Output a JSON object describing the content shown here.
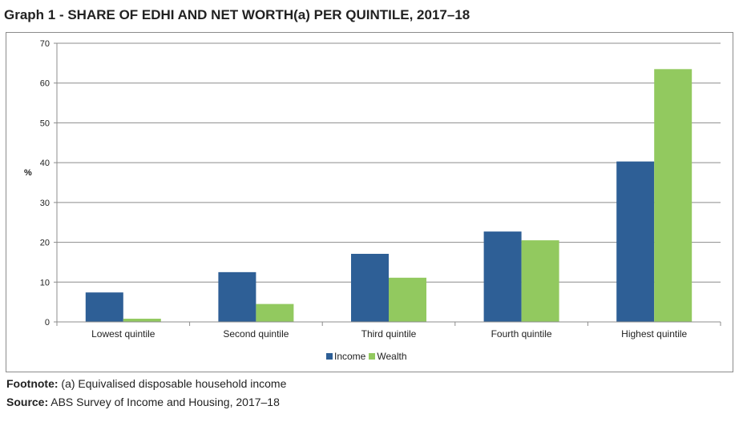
{
  "page": {
    "title": "Graph 1 - SHARE OF EDHI AND NET WORTH(a) PER QUINTILE, 2017–18",
    "footnote_label": "Footnote:",
    "footnote_text": " (a) Equivalised disposable household income",
    "source_label": "Source:",
    "source_text": " ABS Survey of Income and Housing, 2017–18"
  },
  "colors": {
    "income": "#2e5f96",
    "wealth": "#92c95f",
    "grid": "#8c8c8c"
  },
  "chart_data": {
    "type": "bar",
    "title": "Graph 1 - SHARE OF EDHI AND NET WORTH(a) PER QUINTILE, 2017–18",
    "xlabel": "",
    "ylabel": "%",
    "ylim": [
      0,
      70
    ],
    "yticks": [
      0,
      10,
      20,
      30,
      40,
      50,
      60,
      70
    ],
    "grid": true,
    "legend_position": "bottom",
    "categories": [
      "Lowest quintile",
      "Second quintile",
      "Third quintile",
      "Fourth quintile",
      "Highest quintile"
    ],
    "series": [
      {
        "name": "Income",
        "values": [
          7.4,
          12.5,
          17.1,
          22.7,
          40.3
        ]
      },
      {
        "name": "Wealth",
        "values": [
          0.8,
          4.5,
          11.1,
          20.5,
          63.5
        ]
      }
    ]
  }
}
